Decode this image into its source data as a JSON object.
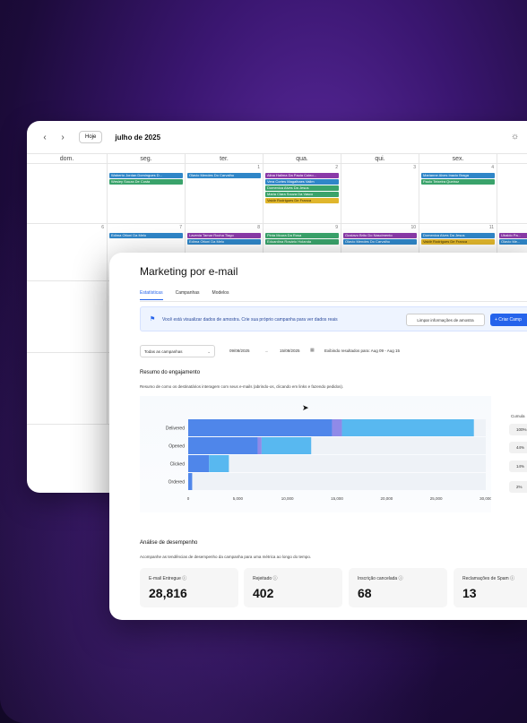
{
  "calendar": {
    "month": "julho de 2025",
    "today_label": "Hoje",
    "weekdays": [
      "dom.",
      "seg.",
      "ter.",
      "qua.",
      "qui.",
      "sex.",
      ""
    ],
    "rows": [
      {
        "days": [
          {
            "n": "",
            "events": []
          },
          {
            "n": "",
            "events": [
              {
                "t": "Waberto Jordan Domingues D...",
                "c": "blue"
              },
              {
                "t": "Wesley Souza De Costa",
                "c": "green"
              }
            ]
          },
          {
            "n": "1",
            "events": [
              {
                "t": "Olavio Mendes Do Carvalho",
                "c": "blue"
              }
            ]
          },
          {
            "n": "2",
            "events": [
              {
                "t": "Alina Halima Da Paula Coleo...",
                "c": "purple"
              },
              {
                "t": "Vera Cortes Magalhaes Valim",
                "c": "blue"
              },
              {
                "t": "Domenica Alves Da Jesus",
                "c": "green"
              },
              {
                "t": "Maria Clara Souza Da Vasco",
                "c": "green"
              },
              {
                "t": "Valdir Rodrigues De Franca",
                "c": "yellow"
              }
            ]
          },
          {
            "n": "3",
            "events": []
          },
          {
            "n": "4",
            "events": [
              {
                "t": "Marianne Alves Inacio Braga",
                "c": "blue"
              },
              {
                "t": "Paulo Teixeira Queiroz",
                "c": "green"
              }
            ]
          },
          {
            "n": "",
            "events": []
          }
        ]
      },
      {
        "days": [
          {
            "n": "6",
            "events": []
          },
          {
            "n": "7",
            "events": [
              {
                "t": "Edima Ottoni Da Melo",
                "c": "blue"
              }
            ]
          },
          {
            "n": "8",
            "events": [
              {
                "t": "Lavenia Tamar Rocha Tiago",
                "c": "purple"
              },
              {
                "t": "Edima Ottoni Da Melo",
                "c": "blue"
              }
            ]
          },
          {
            "n": "9",
            "events": [
              {
                "t": "Pinta Moura Da Rosa",
                "c": "green"
              },
              {
                "t": "Eduardina Rosário Holanda",
                "c": "green"
              }
            ]
          },
          {
            "n": "10",
            "events": [
              {
                "t": "Gustavo Brito Do Nascimento",
                "c": "purple"
              },
              {
                "t": "Olavio Mendes Do Carvalho",
                "c": "blue"
              }
            ]
          },
          {
            "n": "11",
            "events": [
              {
                "t": "Domenica Alves Da Jesus",
                "c": "blue"
              },
              {
                "t": "Valdir Rodrigues De Franca",
                "c": "yellow"
              }
            ]
          },
          {
            "n": "",
            "events": [
              {
                "t": "Ubaldo Pa...",
                "c": "purple"
              },
              {
                "t": "Olavio Me...",
                "c": "blue"
              }
            ]
          }
        ]
      }
    ]
  },
  "marketing": {
    "title": "Marketing por e-mail",
    "tabs": [
      "Estatísticas",
      "Campanhas",
      "Modelos"
    ],
    "banner_text": "Você está visualizar dados de amostra. Crie sua próprio campanha para ver dados reais",
    "clear_button": "Limpar informações de amostra",
    "create_button": "+ Criar Camp",
    "filter_select": "Todas as campanhas",
    "date_from": "09/08/2025",
    "date_to": "15/08/2025",
    "showing_text": "Exibindo resultados para: Aug 09 - Aug 15",
    "engagement_title": "Resumo do engajamento",
    "engagement_sub": "Resumo de como os destinatários interagem com seus e-mails (abrindo-os, clicando em links e fazendo pedidos).",
    "cumulative_label": "Cumula",
    "cumulative": [
      "100%",
      "44%",
      "14%",
      "2%"
    ],
    "performance_title": "Análise de desempenho",
    "performance_sub": "Acompanhe as tendências de desempenho da campanha para uma métrica ao longo do tempo.",
    "cards": [
      {
        "label": "E-mail Entregue",
        "value": "28,816"
      },
      {
        "label": "Rejeitado",
        "value": "402"
      },
      {
        "label": "Inscrição cancelada",
        "value": "68"
      },
      {
        "label": "Reclamações de Spam",
        "value": "13"
      }
    ]
  },
  "chart_data": {
    "type": "bar",
    "orientation": "horizontal",
    "stacked": true,
    "categories": [
      "Delivered",
      "Opened",
      "Clicked",
      "Ordered"
    ],
    "series": [
      {
        "values": [
          14500,
          7000,
          2100,
          400
        ],
        "color": "#4f86ea"
      },
      {
        "values": [
          1000,
          400,
          0,
          0
        ],
        "color": "#8f8ae8"
      },
      {
        "values": [
          13300,
          5000,
          2000,
          0
        ],
        "color": "#58b8f0"
      }
    ],
    "x_ticks": [
      "0",
      "5,000",
      "10,000",
      "15,000",
      "20,000",
      "25,000",
      "30,000"
    ],
    "xlim": [
      0,
      30000
    ]
  },
  "colors": {
    "accent": "#2563eb",
    "event_blue": "#2f86c8",
    "event_green": "#3aa36b",
    "event_purple": "#8a3aa8",
    "event_yellow": "#e0b62c"
  }
}
